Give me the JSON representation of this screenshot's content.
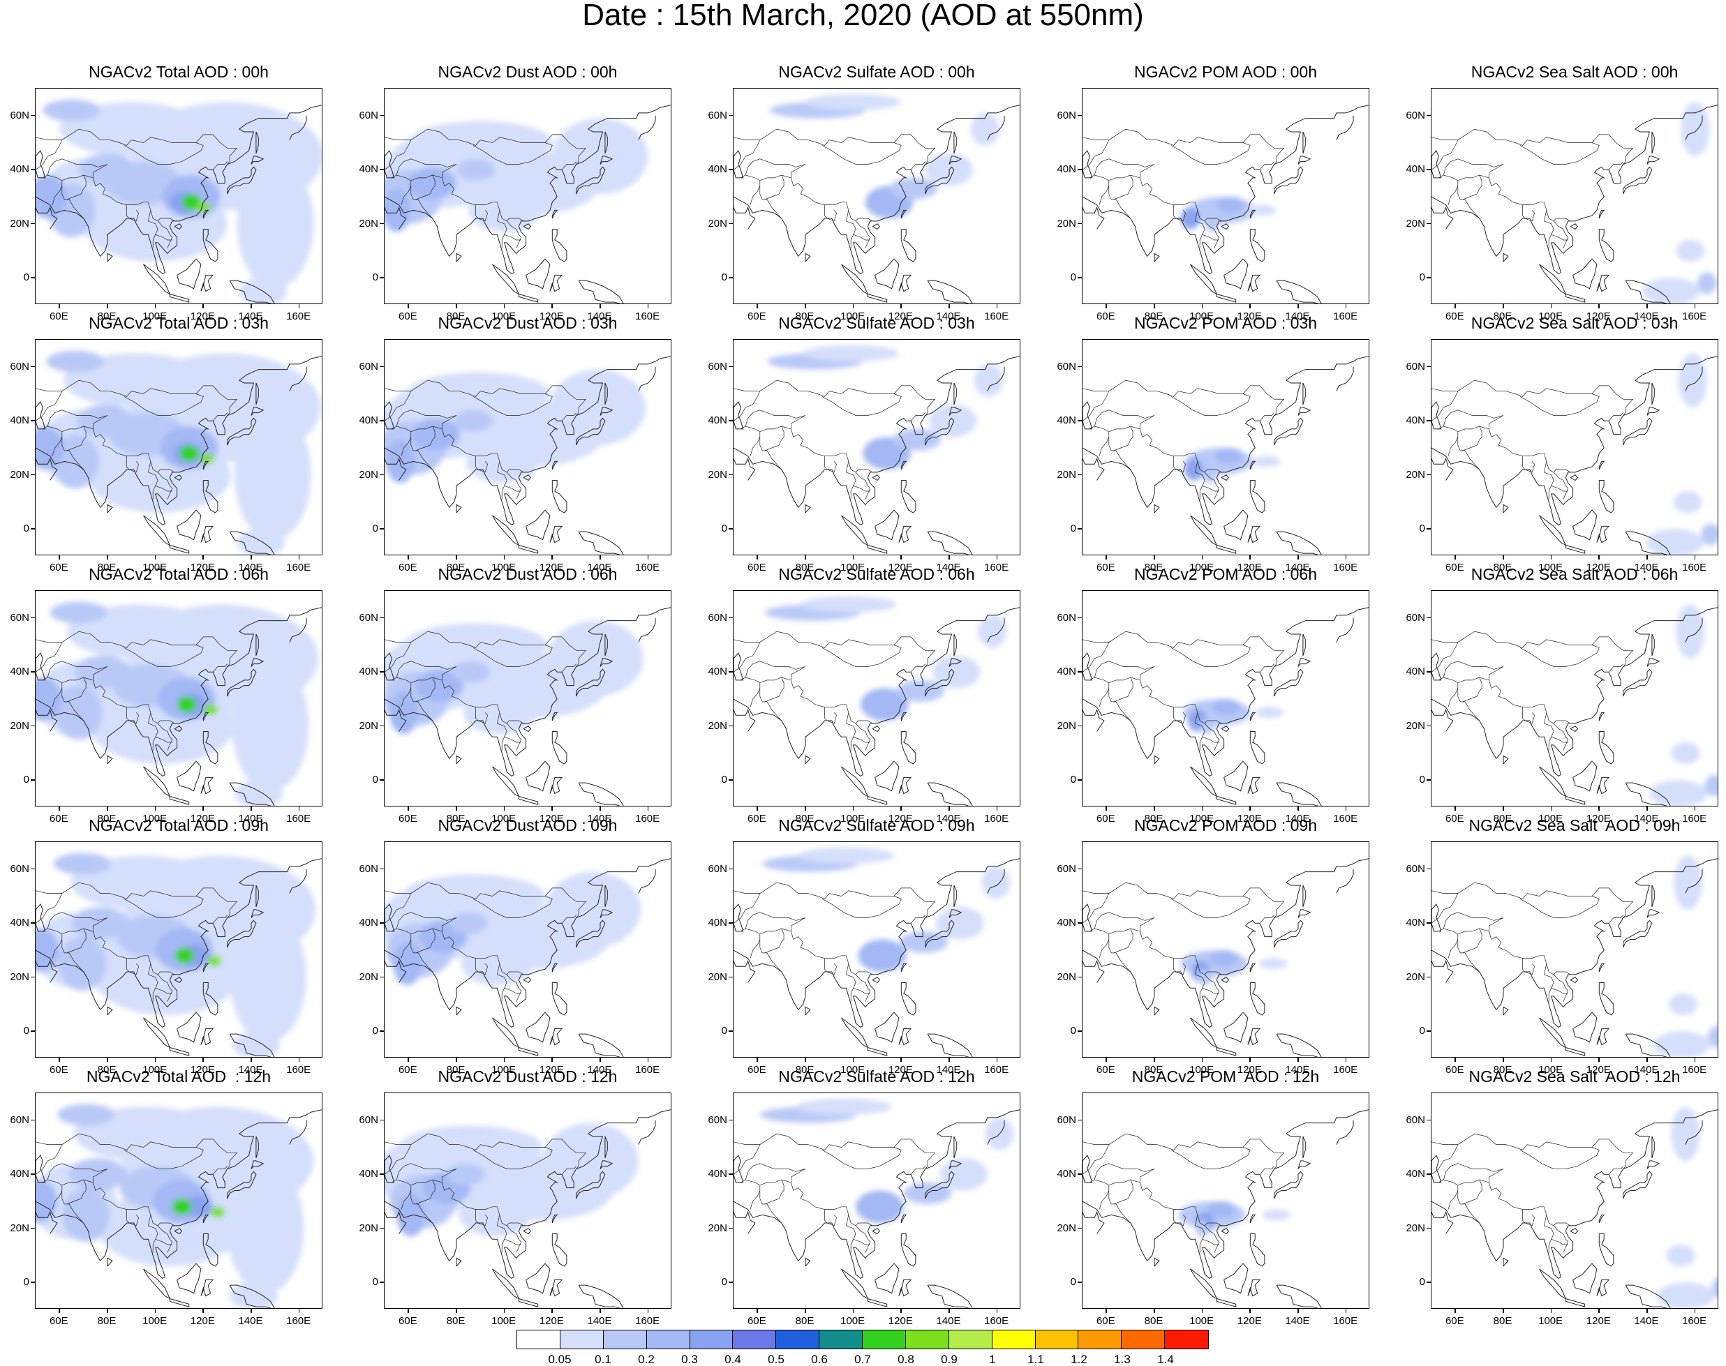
{
  "title": "Date : 15th March, 2020 (AOD at 550nm)",
  "lat_ticks": [
    "60N",
    "40N",
    "20N",
    "0"
  ],
  "lon_ticks": [
    "60E",
    "80E",
    "100E",
    "120E",
    "140E",
    "160E"
  ],
  "rows": [
    {
      "hour": "00h",
      "titles": [
        "NGACv2 Total AOD : 00h",
        "NGACv2 Dust AOD : 00h",
        "NGACv2 Sulfate AOD : 00h",
        "NGACv2 POM AOD : 00h",
        "NGACv2 Sea Salt AOD : 00h"
      ]
    },
    {
      "hour": "03h",
      "titles": [
        "NGACv2 Total AOD : 03h",
        "NGACv2 Dust AOD : 03h",
        "NGACv2 Sulfate AOD : 03h",
        "NGACv2 POM AOD : 03h",
        "NGACv2 Sea Salt AOD : 03h"
      ]
    },
    {
      "hour": "06h",
      "titles": [
        "NGACv2 Total AOD : 06h",
        "NGACv2 Dust AOD : 06h",
        "NGACv2 Sulfate AOD : 06h",
        "NGACv2 POM AOD : 06h",
        "NGACv2 Sea Salt AOD : 06h"
      ]
    },
    {
      "hour": "09h",
      "titles": [
        "NGACv2 Total AOD : 09h",
        "NGACv2 Dust AOD : 09h",
        "NGACv2 Sulfate AOD : 09h",
        "NGACv2 POM AOD : 09h",
        "NGACv2 Sea Salt  AOD : 09h"
      ]
    },
    {
      "hour": "12h",
      "titles": [
        "NGACv2 Total AOD  : 12h",
        "NGACv2 Dust AOD : 12h",
        "NGACv2 Sulfate AOD : 12h",
        "NGACv2 POM  AOD : 12h",
        "NGACv2 Sea Salt  AOD : 12h"
      ]
    }
  ],
  "colorbar": {
    "labels": [
      "0.05",
      "0.1",
      "0.2",
      "0.3",
      "0.4",
      "0.5",
      "0.6",
      "0.7",
      "0.8",
      "0.9",
      "1",
      "1.1",
      "1.2",
      "1.3",
      "1.4"
    ],
    "colors": [
      "#ffffff",
      "#d4dffb",
      "#b9c9f7",
      "#a3b8f4",
      "#8aa3f0",
      "#6a78e8",
      "#1f5fe0",
      "#138c8c",
      "#34d21f",
      "#7de01c",
      "#b6ec4a",
      "#ffff00",
      "#ffc000",
      "#ff9a00",
      "#ff6a00",
      "#ff1a00"
    ]
  }
}
